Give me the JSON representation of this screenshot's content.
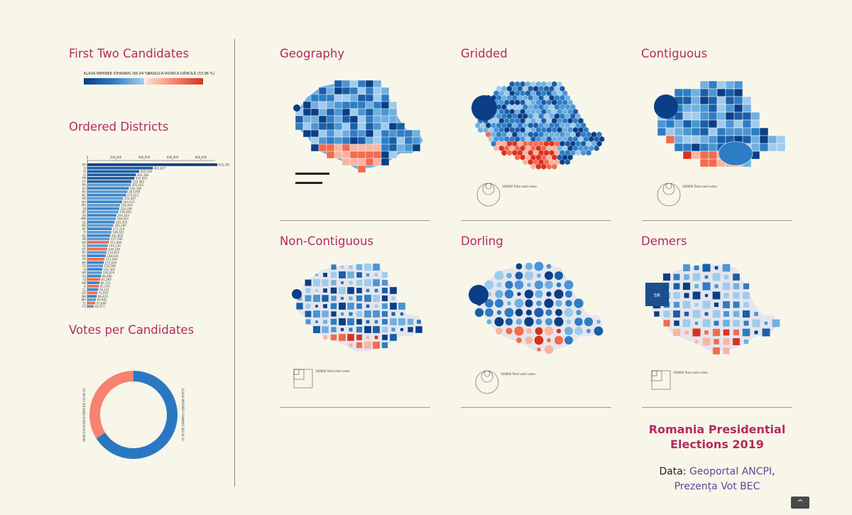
{
  "colors": {
    "title": "#b5295f",
    "blue_dark": "#0b3e86",
    "blue_mid": "#2e7cc4",
    "blue_light": "#8fbde3",
    "red_dark": "#d9321f",
    "red_mid": "#f26b4e",
    "red_light": "#f9b4a2",
    "donut_blue": "#2a78c2",
    "donut_red": "#f7826e"
  },
  "titles": {
    "first_two": "First Two Candidates",
    "ordered": "Ordered Districts",
    "votes": "Votes per Candidates",
    "geography": "Geography",
    "gridded": "Gridded",
    "contiguous": "Contiguous",
    "non_contiguous": "Non-Contiguous",
    "dorling": "Dorling",
    "demers": "Demers"
  },
  "legend": {
    "candidate_a": "KLAUS-WERNER IOHANNIS (66.04 %)",
    "candidate_b": "VASILICA-VIORICA DĂNCILĂ (33.96 %)"
  },
  "maps": {
    "total_votes_label": "100000 Total valid votes",
    "scale_values": [
      "100000",
      "200000",
      "300000"
    ]
  },
  "footer": {
    "title": "Romania Presidential Elections 2019",
    "data_prefix": "Data: ",
    "link1": "Geoportal ANCPI",
    "separator": ",",
    "link2": "Prezența Vot BEC",
    "up_button": "^"
  },
  "chart_data": [
    {
      "type": "bar",
      "title": "Ordered Districts",
      "orientation": "horizontal",
      "xlim": [
        0,
        900000
      ],
      "tick_labels": [
        "0",
        "200,000",
        "400,000",
        "600,000",
        "800,000"
      ],
      "categories": [
        "SR",
        "B",
        "IS",
        "CJ",
        "TM",
        "CT",
        "PH",
        "SV",
        "BV",
        "BC",
        "AR",
        "BH",
        "MS",
        "DJ",
        "AG",
        "SB",
        "MM",
        "GL",
        "HD",
        "NT",
        "IF",
        "BZ",
        "AB",
        "DB",
        "VL",
        "OT",
        "BT",
        "VN",
        "TR",
        "BR",
        "CS",
        "SJ",
        "HR",
        "VS",
        "GJ",
        "SM",
        "IL",
        "CL",
        "GR",
        "BN",
        "MH",
        "TL",
        "CV"
      ],
      "values": [
        915341,
        461627,
        365169,
        342160,
        332001,
        310495,
        305420,
        292180,
        283094,
        272611,
        251447,
        244915,
        229654,
        224106,
        218420,
        204183,
        199815,
        191455,
        183240,
        172119,
        168922,
        161850,
        157280,
        151980,
        144130,
        140190,
        134812,
        128630,
        121240,
        115650,
        110590,
        105302,
        100874,
        96480,
        91260,
        85722,
        81110,
        76531,
        71003,
        66420,
        60983,
        55640,
        44471
      ],
      "winner": [
        "A",
        "A",
        "A",
        "A",
        "A",
        "A",
        "A",
        "A",
        "A",
        "A",
        "A",
        "A",
        "A",
        "A",
        "A",
        "A",
        "A",
        "A",
        "A",
        "A",
        "A",
        "A",
        "A",
        "B",
        "A",
        "B",
        "A",
        "A",
        "B",
        "A",
        "A",
        "A",
        "A",
        "A",
        "B",
        "A",
        "B",
        "A",
        "B",
        "A",
        "A",
        "B",
        "A"
      ]
    },
    {
      "type": "pie",
      "title": "Votes per Candidates",
      "categories": [
        "KLAUS-WERNER IOHANNIS",
        "VASILICA-VIORICA DĂNCILĂ"
      ],
      "values": [
        66.04,
        33.96
      ]
    }
  ]
}
